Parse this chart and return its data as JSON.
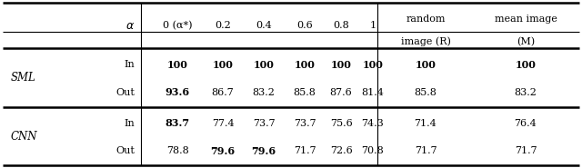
{
  "rows": [
    {
      "group": "SML",
      "label": "In",
      "values": [
        "100",
        "100",
        "100",
        "100",
        "100",
        "100",
        "100",
        "100"
      ],
      "bold": [
        true,
        true,
        true,
        true,
        true,
        true,
        true,
        true
      ]
    },
    {
      "group": "SML",
      "label": "Out",
      "values": [
        "93.6",
        "86.7",
        "83.2",
        "85.8",
        "87.6",
        "81.4",
        "85.8",
        "83.2"
      ],
      "bold": [
        true,
        false,
        false,
        false,
        false,
        false,
        false,
        false
      ]
    },
    {
      "group": "CNN",
      "label": "In",
      "values": [
        "83.7",
        "77.4",
        "73.7",
        "73.7",
        "75.6",
        "74.3",
        "71.4",
        "76.4"
      ],
      "bold": [
        true,
        false,
        false,
        false,
        false,
        false,
        false,
        false
      ]
    },
    {
      "group": "CNN",
      "label": "Out",
      "values": [
        "78.8",
        "79.6",
        "79.6",
        "71.7",
        "72.6",
        "70.8",
        "71.7",
        "71.7"
      ],
      "bold": [
        false,
        true,
        true,
        false,
        false,
        false,
        false,
        false
      ]
    }
  ],
  "background_color": "#ffffff",
  "line_color": "#000000",
  "font_size": 8.0
}
